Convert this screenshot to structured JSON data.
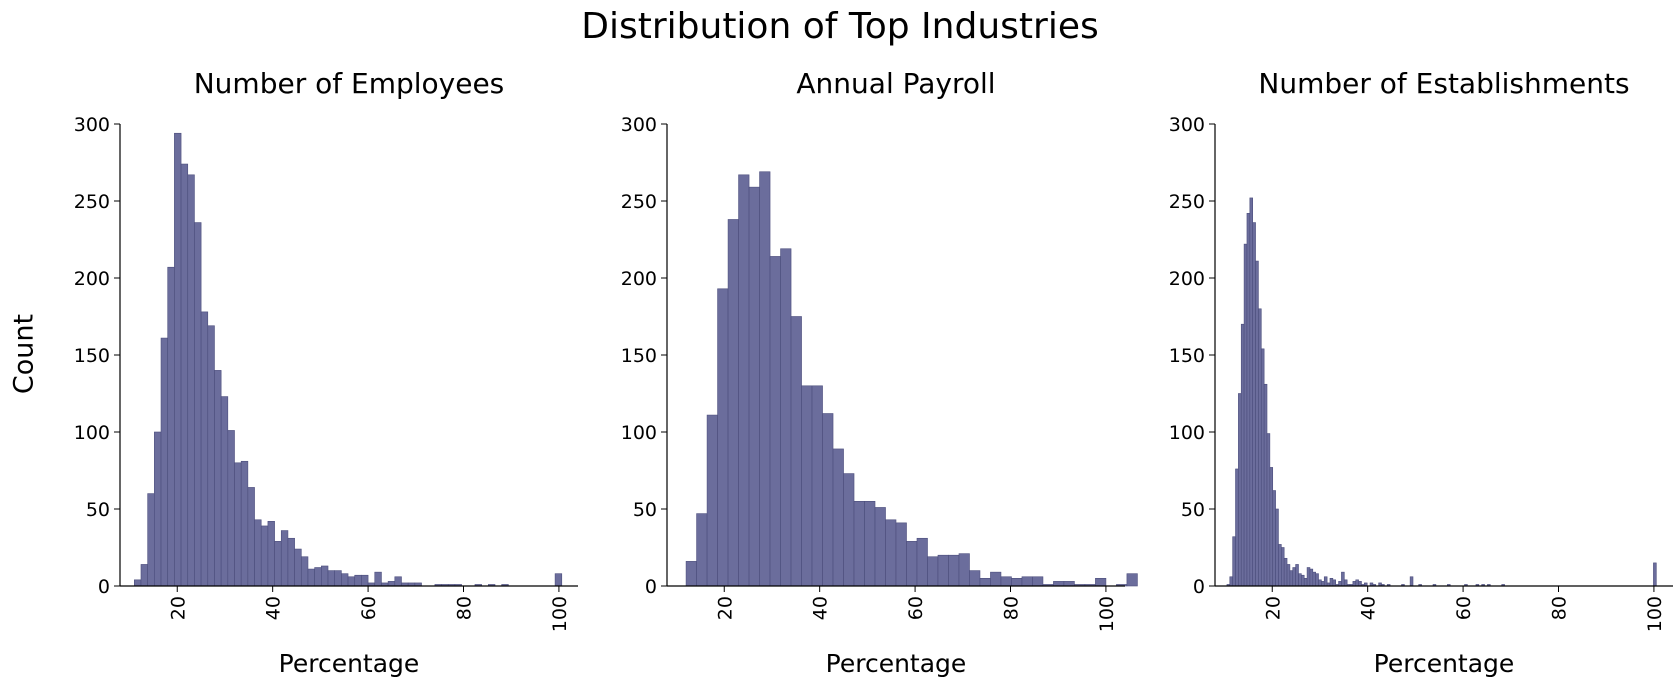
{
  "figure": {
    "title": "Distribution of Top Industries",
    "ylabel": "Count",
    "bar_color": "#6b6d9c",
    "bar_edge_color": "#4b4d7c"
  },
  "chart_data": [
    {
      "type": "bar",
      "title": "Number of Employees",
      "xlabel": "Percentage",
      "ylabel": "Count",
      "xlim": [
        8,
        104
      ],
      "ylim": [
        0,
        300
      ],
      "xticks": [
        20,
        40,
        60,
        80,
        100
      ],
      "yticks": [
        0,
        50,
        100,
        150,
        200,
        250,
        300
      ],
      "bin_start": 11,
      "bin_width": 1.4,
      "values": [
        4,
        14,
        60,
        100,
        161,
        207,
        294,
        274,
        267,
        236,
        178,
        169,
        140,
        123,
        101,
        80,
        81,
        64,
        43,
        39,
        42,
        29,
        36,
        31,
        24,
        19,
        11,
        12,
        13,
        10,
        10,
        8,
        6,
        7,
        7,
        2,
        9,
        2,
        3,
        6,
        2,
        2,
        2,
        0,
        0,
        1,
        1,
        1,
        1,
        0,
        0,
        1,
        0,
        1,
        0,
        1,
        0,
        0,
        0,
        0,
        0,
        0,
        0,
        8
      ]
    },
    {
      "type": "bar",
      "title": "Annual Payroll",
      "xlabel": "Percentage",
      "ylabel": "",
      "xlim": [
        8,
        104
      ],
      "ylim": [
        0,
        300
      ],
      "xticks": [
        20,
        40,
        60,
        80,
        100
      ],
      "yticks": [
        0,
        50,
        100,
        150,
        200,
        250,
        300
      ],
      "bin_start": 12,
      "bin_width": 2.2,
      "values": [
        16,
        47,
        111,
        193,
        238,
        267,
        259,
        269,
        214,
        219,
        175,
        130,
        130,
        112,
        89,
        73,
        55,
        55,
        51,
        43,
        41,
        29,
        31,
        19,
        20,
        20,
        21,
        10,
        5,
        9,
        6,
        5,
        6,
        6,
        1,
        3,
        3,
        1,
        1,
        5,
        0,
        1,
        8
      ]
    },
    {
      "type": "bar",
      "title": "Number of Establishments",
      "xlabel": "Percentage",
      "ylabel": "",
      "xlim": [
        8,
        104
      ],
      "ylim": [
        0,
        300
      ],
      "xticks": [
        20,
        40,
        60,
        80,
        100
      ],
      "yticks": [
        0,
        50,
        100,
        150,
        200,
        250,
        300
      ],
      "bin_start": 10.5,
      "bin_width": 0.6,
      "values": [
        1,
        6,
        32,
        76,
        125,
        170,
        222,
        242,
        252,
        236,
        211,
        180,
        154,
        131,
        99,
        77,
        62,
        50,
        27,
        25,
        18,
        14,
        10,
        12,
        14,
        8,
        7,
        5,
        12,
        11,
        9,
        8,
        4,
        3,
        6,
        2,
        5,
        4,
        1,
        3,
        9,
        4,
        1,
        1,
        3,
        4,
        3,
        1,
        2,
        0,
        2,
        1,
        0,
        2,
        1,
        0,
        1,
        0,
        0,
        0,
        0,
        1,
        0,
        0,
        6,
        0,
        0,
        1,
        0,
        0,
        0,
        0,
        1,
        0,
        0,
        0,
        0,
        1,
        0,
        0,
        0,
        0,
        0,
        1,
        0,
        0,
        0,
        1,
        0,
        1,
        0,
        1,
        0,
        0,
        0,
        0,
        1,
        0,
        0,
        0,
        0,
        0,
        0,
        0,
        0,
        0,
        0,
        0,
        0,
        0,
        0,
        0,
        0,
        0,
        0,
        0,
        0,
        0,
        0,
        0,
        0,
        0,
        0,
        0,
        0,
        0,
        0,
        0,
        0,
        0,
        0,
        0,
        0,
        0,
        0,
        0,
        0,
        0,
        0,
        0,
        0,
        0,
        0,
        0,
        0,
        0,
        0,
        0,
        0,
        15
      ]
    }
  ]
}
